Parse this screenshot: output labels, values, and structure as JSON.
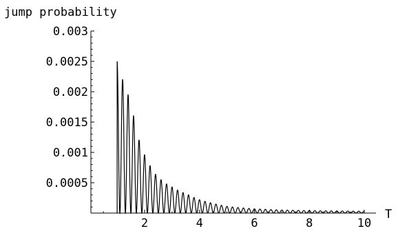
{
  "chart_data": {
    "type": "line",
    "title": "",
    "ylabel": "jump probability",
    "xlabel": "T",
    "xlim": [
      0,
      10
    ],
    "ylim": [
      0,
      0.003
    ],
    "x_ticks": [
      {
        "value": 2,
        "label": "2"
      },
      {
        "value": 4,
        "label": "4"
      },
      {
        "value": 6,
        "label": "6"
      },
      {
        "value": 8,
        "label": "8"
      },
      {
        "value": 10,
        "label": "10"
      }
    ],
    "y_ticks": [
      {
        "value": 0.0005,
        "label": "0.0005"
      },
      {
        "value": 0.001,
        "label": "0.001"
      },
      {
        "value": 0.0015,
        "label": "0.0015"
      },
      {
        "value": 0.002,
        "label": "0.002"
      },
      {
        "value": 0.0025,
        "label": "0.0025"
      },
      {
        "value": 0.003,
        "label": "0.003"
      }
    ],
    "grid": false,
    "series": [
      {
        "x_start": 1.0,
        "x_end": 10.0,
        "oscillation_period": 0.2,
        "peaks": [
          {
            "x": 1.0,
            "y": 0.0025
          },
          {
            "x": 1.2,
            "y": 0.0022
          },
          {
            "x": 1.4,
            "y": 0.00195
          },
          {
            "x": 1.6,
            "y": 0.0016
          },
          {
            "x": 1.8,
            "y": 0.0012
          },
          {
            "x": 2.0,
            "y": 0.00096
          },
          {
            "x": 2.2,
            "y": 0.00078
          },
          {
            "x": 2.4,
            "y": 0.00064
          },
          {
            "x": 2.6,
            "y": 0.00055
          },
          {
            "x": 2.8,
            "y": 0.00048
          },
          {
            "x": 3.0,
            "y": 0.00043
          },
          {
            "x": 3.2,
            "y": 0.00038
          },
          {
            "x": 3.6,
            "y": 0.0003
          },
          {
            "x": 4.0,
            "y": 0.00022
          },
          {
            "x": 4.5,
            "y": 0.00016
          },
          {
            "x": 5.0,
            "y": 0.00011
          },
          {
            "x": 6.0,
            "y": 7e-05
          },
          {
            "x": 7.0,
            "y": 5e-05
          },
          {
            "x": 8.0,
            "y": 4e-05
          },
          {
            "x": 9.0,
            "y": 3.5e-05
          },
          {
            "x": 10.0,
            "y": 3e-05
          }
        ]
      }
    ]
  }
}
